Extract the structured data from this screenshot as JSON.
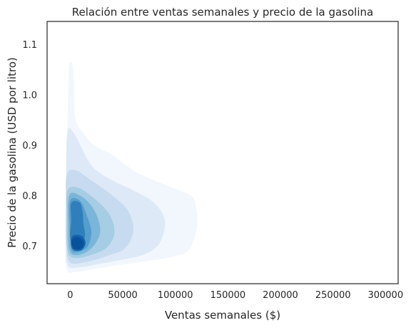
{
  "chart_data": {
    "type": "kde_density",
    "title": "Relación entre ventas semanales y precio de la gasolina",
    "xlabel": "Ventas semanales ($)",
    "ylabel": "Precio de la gasolina (USD por litro)",
    "xlim": [
      -22000,
      312000
    ],
    "ylim": [
      0.625,
      1.145
    ],
    "xticks": [
      0,
      50000,
      100000,
      150000,
      200000,
      250000,
      300000
    ],
    "xtick_labels": [
      "0",
      "50000",
      "100000",
      "150000",
      "200000",
      "250000",
      "300000"
    ],
    "yticks": [
      0.7,
      0.8,
      0.9,
      1.0,
      1.1
    ],
    "ytick_labels": [
      "0.7",
      "0.8",
      "0.9",
      "1.0",
      "1.1"
    ],
    "grid": false,
    "colormap": [
      "#f1f7fd",
      "#dde9f6",
      "#c6dbef",
      "#a5cde3",
      "#7ab6d9",
      "#539ecd",
      "#2f7fbc",
      "#1862aa",
      "#08519c"
    ],
    "density_levels": [
      {
        "level": 1,
        "points": [
          [
            -1000,
            1.06
          ],
          [
            2500,
            1.055
          ],
          [
            4000,
            1.0
          ],
          [
            5000,
            0.95
          ],
          [
            20000,
            0.905
          ],
          [
            40000,
            0.88
          ],
          [
            60000,
            0.85
          ],
          [
            80000,
            0.83
          ],
          [
            100000,
            0.813
          ],
          [
            116000,
            0.798
          ],
          [
            120000,
            0.775
          ],
          [
            121000,
            0.745
          ],
          [
            118000,
            0.715
          ],
          [
            112000,
            0.69
          ],
          [
            100000,
            0.68
          ],
          [
            80000,
            0.672
          ],
          [
            60000,
            0.666
          ],
          [
            40000,
            0.66
          ],
          [
            20000,
            0.653
          ],
          [
            5000,
            0.648
          ],
          [
            -3000,
            0.652
          ],
          [
            -5000,
            0.7
          ],
          [
            -4500,
            0.8
          ],
          [
            -3000,
            0.9
          ],
          [
            -2000,
            1.0
          ]
        ]
      },
      {
        "level": 2,
        "points": [
          [
            -3000,
            0.92
          ],
          [
            3000,
            0.925
          ],
          [
            20000,
            0.86
          ],
          [
            40000,
            0.83
          ],
          [
            60000,
            0.81
          ],
          [
            80000,
            0.785
          ],
          [
            90000,
            0.75
          ],
          [
            85000,
            0.705
          ],
          [
            70000,
            0.683
          ],
          [
            50000,
            0.673
          ],
          [
            30000,
            0.665
          ],
          [
            10000,
            0.658
          ],
          [
            -2000,
            0.66
          ],
          [
            -4000,
            0.7
          ],
          [
            -4000,
            0.8
          ]
        ]
      },
      {
        "level": 3,
        "points": [
          [
            -3500,
            0.84
          ],
          [
            5000,
            0.85
          ],
          [
            20000,
            0.83
          ],
          [
            40000,
            0.8
          ],
          [
            55000,
            0.77
          ],
          [
            60000,
            0.73
          ],
          [
            52000,
            0.695
          ],
          [
            35000,
            0.68
          ],
          [
            15000,
            0.668
          ],
          [
            0,
            0.667
          ],
          [
            -3500,
            0.7
          ],
          [
            -3800,
            0.78
          ]
        ]
      },
      {
        "level": 4,
        "points": [
          [
            -2500,
            0.81
          ],
          [
            8000,
            0.815
          ],
          [
            25000,
            0.79
          ],
          [
            38000,
            0.76
          ],
          [
            42000,
            0.725
          ],
          [
            35000,
            0.697
          ],
          [
            20000,
            0.682
          ],
          [
            5000,
            0.676
          ],
          [
            -2500,
            0.69
          ],
          [
            -3500,
            0.76
          ]
        ]
      },
      {
        "level": 5,
        "points": [
          [
            -1000,
            0.8
          ],
          [
            9000,
            0.8
          ],
          [
            20000,
            0.78
          ],
          [
            27000,
            0.75
          ],
          [
            28000,
            0.722
          ],
          [
            20000,
            0.695
          ],
          [
            8000,
            0.682
          ],
          [
            -500,
            0.69
          ],
          [
            -2000,
            0.74
          ]
        ]
      },
      {
        "level": 6,
        "points": [
          [
            0,
            0.79
          ],
          [
            9000,
            0.79
          ],
          [
            15000,
            0.765
          ],
          [
            20000,
            0.73
          ],
          [
            17000,
            0.7
          ],
          [
            8000,
            0.688
          ],
          [
            1000,
            0.693
          ],
          [
            -500,
            0.74
          ]
        ]
      },
      {
        "level": 7,
        "points": [
          [
            1000,
            0.785
          ],
          [
            9000,
            0.786
          ],
          [
            12000,
            0.765
          ],
          [
            12500,
            0.745
          ],
          [
            14000,
            0.72
          ],
          [
            10000,
            0.696
          ],
          [
            3000,
            0.696
          ],
          [
            0,
            0.72
          ],
          [
            1000,
            0.75
          ]
        ]
      },
      {
        "level": 8,
        "points": [
          [
            1500,
            0.718
          ],
          [
            6000,
            0.722
          ],
          [
            12000,
            0.718
          ],
          [
            14500,
            0.705
          ],
          [
            11000,
            0.692
          ],
          [
            4000,
            0.691
          ],
          [
            1000,
            0.7
          ]
        ]
      },
      {
        "level": 9,
        "points": [
          [
            1500,
            0.712
          ],
          [
            6000,
            0.718
          ],
          [
            11000,
            0.713
          ],
          [
            13000,
            0.704
          ],
          [
            10000,
            0.694
          ],
          [
            4000,
            0.694
          ],
          [
            1500,
            0.703
          ]
        ]
      }
    ]
  }
}
